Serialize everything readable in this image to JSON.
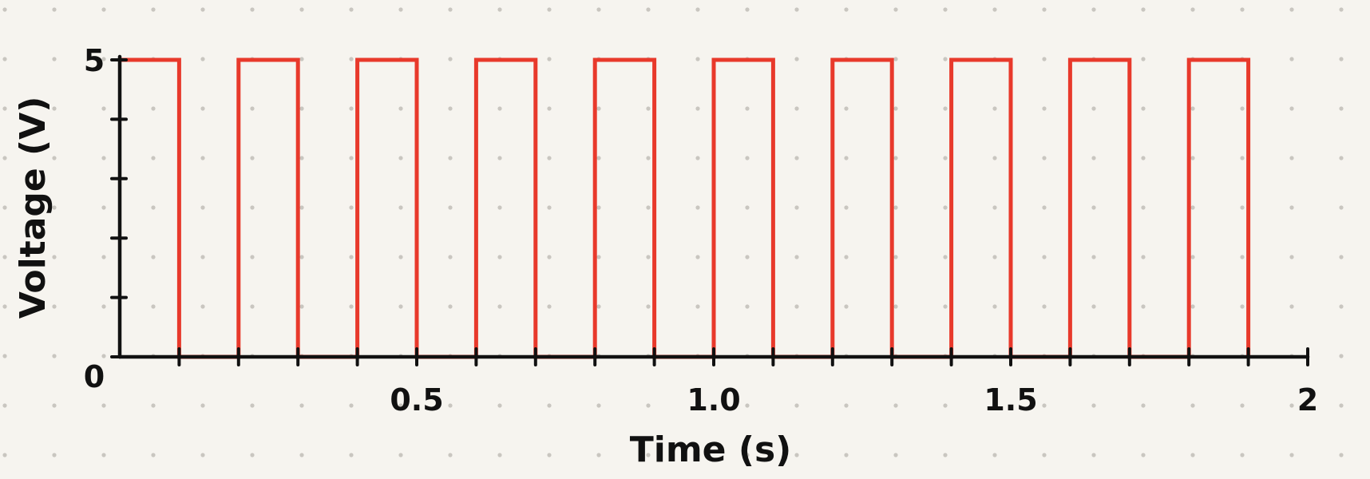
{
  "chart_data": {
    "type": "line",
    "title": "",
    "xlabel": "Time (s)",
    "ylabel": "Voltage (V)",
    "xlim": [
      0,
      2
    ],
    "ylim": [
      0,
      5
    ],
    "x_tick_labels": [
      {
        "value": 0.5,
        "label": "0.5"
      },
      {
        "value": 1.0,
        "label": "1.0"
      },
      {
        "value": 1.5,
        "label": "1.5"
      },
      {
        "value": 2,
        "label": "2"
      }
    ],
    "x_minor_ticks": [
      0.1,
      0.2,
      0.3,
      0.4,
      0.6,
      0.7,
      0.8,
      0.9,
      1.1,
      1.2,
      1.3,
      1.4,
      1.6,
      1.7,
      1.8,
      1.9
    ],
    "y_tick_labels": [
      {
        "value": 0,
        "label": "0"
      },
      {
        "value": 5,
        "label": "5"
      }
    ],
    "y_minor_ticks": [
      1,
      2,
      3,
      4
    ],
    "series": [
      {
        "color": "#e8392b",
        "step": true,
        "x": [
          0,
          0.1,
          0.1,
          0.2,
          0.2,
          0.3,
          0.3,
          0.4,
          0.4,
          0.5,
          0.5,
          0.6,
          0.6,
          0.7,
          0.7,
          0.8,
          0.8,
          0.9,
          0.9,
          1.0,
          1.0,
          1.1,
          1.1,
          1.2,
          1.2,
          1.3,
          1.3,
          1.4,
          1.4,
          1.5,
          1.5,
          1.6,
          1.6,
          1.7,
          1.7,
          1.8,
          1.8,
          1.9,
          1.9
        ],
        "y": [
          5,
          5,
          0,
          0,
          5,
          5,
          0,
          0,
          5,
          5,
          0,
          0,
          5,
          5,
          0,
          0,
          5,
          5,
          0,
          0,
          5,
          5,
          0,
          0,
          5,
          5,
          0,
          0,
          5,
          5,
          0,
          0,
          5,
          5,
          0,
          0,
          5,
          5,
          0
        ]
      }
    ],
    "grid": false,
    "background": "dotted paper"
  }
}
